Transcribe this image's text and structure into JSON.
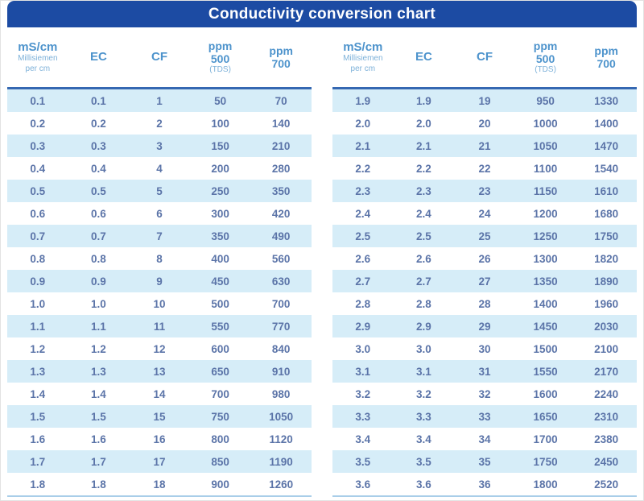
{
  "title": "Conductivity conversion chart",
  "colors": {
    "title_bar": "#1c4ba3",
    "header_text": "#4d93cc",
    "header_subtext": "#7db1d9",
    "header_rule": "#3568b2",
    "row_text": "#5b74a8",
    "stripe": "#d6edf8",
    "bottom_rule": "#a9cee9"
  },
  "header": {
    "col1": {
      "main": "mS/cm",
      "sub_line1": "Millisiemen",
      "sub_line2": "per cm"
    },
    "col2": "EC",
    "col3": "CF",
    "col4": {
      "line1": "ppm",
      "line2": "500",
      "sub": "(TDS)"
    },
    "col5": {
      "line1": "ppm",
      "line2": "700"
    }
  },
  "chart_data": {
    "type": "table",
    "title": "Conductivity conversion chart",
    "columns": [
      "mS/cm (Millisiemen per cm)",
      "EC",
      "CF",
      "ppm 500 (TDS)",
      "ppm 700"
    ],
    "tables": [
      {
        "rows": [
          [
            "0.1",
            "0.1",
            "1",
            "50",
            "70"
          ],
          [
            "0.2",
            "0.2",
            "2",
            "100",
            "140"
          ],
          [
            "0.3",
            "0.3",
            "3",
            "150",
            "210"
          ],
          [
            "0.4",
            "0.4",
            "4",
            "200",
            "280"
          ],
          [
            "0.5",
            "0.5",
            "5",
            "250",
            "350"
          ],
          [
            "0.6",
            "0.6",
            "6",
            "300",
            "420"
          ],
          [
            "0.7",
            "0.7",
            "7",
            "350",
            "490"
          ],
          [
            "0.8",
            "0.8",
            "8",
            "400",
            "560"
          ],
          [
            "0.9",
            "0.9",
            "9",
            "450",
            "630"
          ],
          [
            "1.0",
            "1.0",
            "10",
            "500",
            "700"
          ],
          [
            "1.1",
            "1.1",
            "11",
            "550",
            "770"
          ],
          [
            "1.2",
            "1.2",
            "12",
            "600",
            "840"
          ],
          [
            "1.3",
            "1.3",
            "13",
            "650",
            "910"
          ],
          [
            "1.4",
            "1.4",
            "14",
            "700",
            "980"
          ],
          [
            "1.5",
            "1.5",
            "15",
            "750",
            "1050"
          ],
          [
            "1.6",
            "1.6",
            "16",
            "800",
            "1120"
          ],
          [
            "1.7",
            "1.7",
            "17",
            "850",
            "1190"
          ],
          [
            "1.8",
            "1.8",
            "18",
            "900",
            "1260"
          ]
        ]
      },
      {
        "rows": [
          [
            "1.9",
            "1.9",
            "19",
            "950",
            "1330"
          ],
          [
            "2.0",
            "2.0",
            "20",
            "1000",
            "1400"
          ],
          [
            "2.1",
            "2.1",
            "21",
            "1050",
            "1470"
          ],
          [
            "2.2",
            "2.2",
            "22",
            "1100",
            "1540"
          ],
          [
            "2.3",
            "2.3",
            "23",
            "1150",
            "1610"
          ],
          [
            "2.4",
            "2.4",
            "24",
            "1200",
            "1680"
          ],
          [
            "2.5",
            "2.5",
            "25",
            "1250",
            "1750"
          ],
          [
            "2.6",
            "2.6",
            "26",
            "1300",
            "1820"
          ],
          [
            "2.7",
            "2.7",
            "27",
            "1350",
            "1890"
          ],
          [
            "2.8",
            "2.8",
            "28",
            "1400",
            "1960"
          ],
          [
            "2.9",
            "2.9",
            "29",
            "1450",
            "2030"
          ],
          [
            "3.0",
            "3.0",
            "30",
            "1500",
            "2100"
          ],
          [
            "3.1",
            "3.1",
            "31",
            "1550",
            "2170"
          ],
          [
            "3.2",
            "3.2",
            "32",
            "1600",
            "2240"
          ],
          [
            "3.3",
            "3.3",
            "33",
            "1650",
            "2310"
          ],
          [
            "3.4",
            "3.4",
            "34",
            "1700",
            "2380"
          ],
          [
            "3.5",
            "3.5",
            "35",
            "1750",
            "2450"
          ],
          [
            "3.6",
            "3.6",
            "36",
            "1800",
            "2520"
          ]
        ]
      }
    ]
  }
}
